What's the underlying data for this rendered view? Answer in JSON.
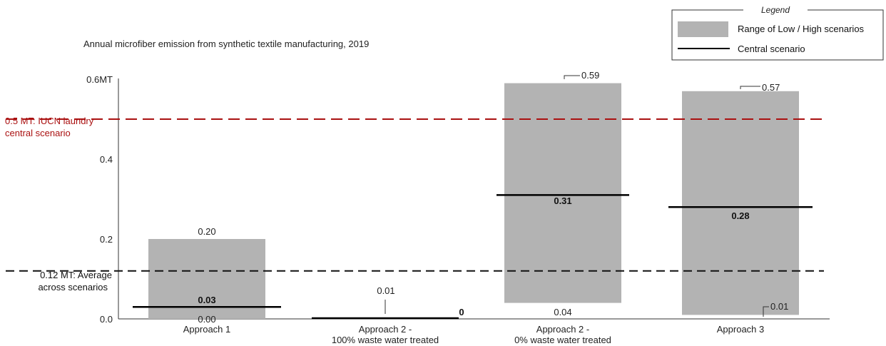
{
  "chart_data": {
    "type": "bar",
    "title": "Annual microfiber emission from synthetic textile manufacturing, 2019",
    "xlabel": "",
    "ylabel": "",
    "ylim": [
      0,
      0.6
    ],
    "y_ticks": [
      {
        "value": 0.0,
        "label": "0.0"
      },
      {
        "value": 0.2,
        "label": "0.2"
      },
      {
        "value": 0.4,
        "label": "0.4"
      },
      {
        "value": 0.6,
        "label": "0.6MT"
      }
    ],
    "categories": [
      {
        "line1": "Approach 1",
        "line2": ""
      },
      {
        "line1": "Approach 2 -",
        "line2": "100% waste water treated"
      },
      {
        "line1": "Approach 2 -",
        "line2": "0% waste water treated"
      },
      {
        "line1": "Approach 3",
        "line2": ""
      }
    ],
    "series": [
      {
        "name": "Range of Low / High scenarios",
        "low": [
          0.0,
          0.0,
          0.04,
          0.01
        ],
        "high": [
          0.2,
          0.01,
          0.59,
          0.57
        ],
        "low_labels": [
          "0.00",
          "",
          "0.04",
          "0.01"
        ],
        "high_labels": [
          "0.20",
          "0.01",
          "0.59",
          "0.57"
        ]
      },
      {
        "name": "Central scenario",
        "values": [
          0.03,
          0.0,
          0.31,
          0.28
        ],
        "labels": [
          "0.03",
          "0",
          "0.31",
          "0.28"
        ]
      }
    ],
    "reference_lines": [
      {
        "value": 0.5,
        "label_line1": "0.5 MT: IUCN laundry",
        "label_line2": "central scenario",
        "color": "#aa1111"
      },
      {
        "value": 0.12,
        "label_line1": "0.12 MT: Average",
        "label_line2": "across scenarios",
        "color": "#111111"
      }
    ],
    "legend": {
      "title": "Legend",
      "position": "top-right"
    },
    "colors": {
      "range": "#b3b3b3",
      "central": "#000000"
    }
  }
}
